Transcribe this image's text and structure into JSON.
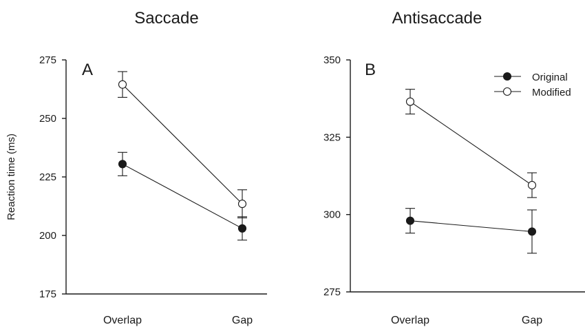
{
  "chart_data": [
    {
      "type": "line",
      "title": "Saccade",
      "panel_label": "A",
      "ylabel": "Reaction time (ms)",
      "xlabel": "",
      "categories": [
        "Overlap",
        "Gap"
      ],
      "ylim": [
        175,
        275
      ],
      "yticks": [
        175,
        200,
        225,
        250,
        275
      ],
      "series": [
        {
          "marker": "filled",
          "values": [
            230.5,
            203.0
          ],
          "errors": [
            5.0,
            5.0
          ]
        },
        {
          "marker": "open",
          "values": [
            264.5,
            213.5
          ],
          "errors": [
            5.5,
            6.0
          ]
        }
      ]
    },
    {
      "type": "line",
      "title": "Antisaccade",
      "panel_label": "B",
      "ylabel": "",
      "xlabel": "",
      "categories": [
        "Overlap",
        "Gap"
      ],
      "ylim": [
        275,
        350
      ],
      "yticks": [
        275,
        300,
        325,
        350
      ],
      "legend": {
        "position": "top-right",
        "entries": [
          "Original",
          "Modified"
        ]
      },
      "series": [
        {
          "name": "Original",
          "marker": "filled",
          "values": [
            298.0,
            294.5
          ],
          "errors": [
            4.0,
            7.0
          ]
        },
        {
          "name": "Modified",
          "marker": "open",
          "values": [
            336.5,
            309.5
          ],
          "errors": [
            4.0,
            4.0
          ]
        }
      ]
    }
  ]
}
